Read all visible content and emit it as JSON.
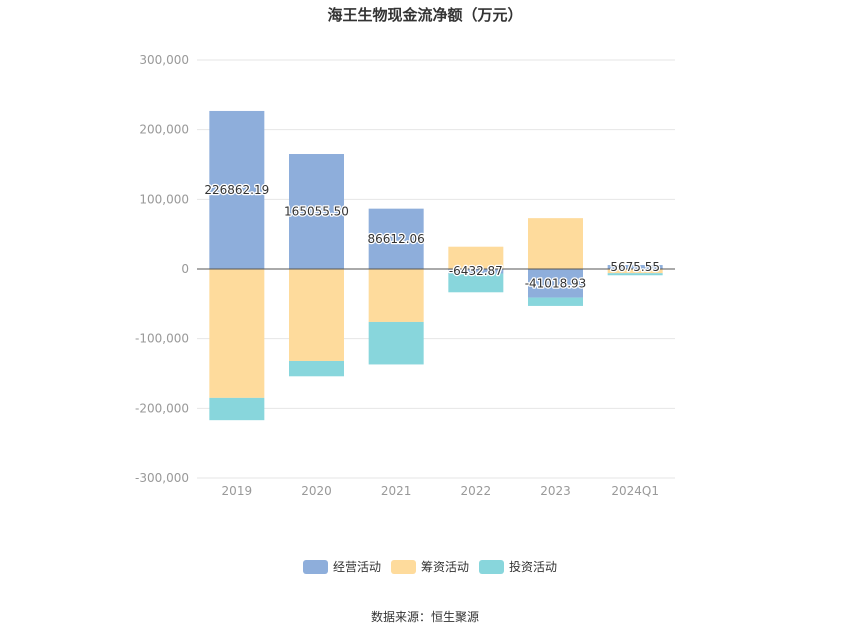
{
  "chart_data": {
    "type": "bar",
    "stacked": true,
    "title": "海王生物现金流净额（万元）",
    "categories": [
      "2019",
      "2020",
      "2021",
      "2022",
      "2023",
      "2024Q1"
    ],
    "ylim": [
      -300000,
      300000
    ],
    "yticks": [
      300000,
      200000,
      100000,
      0,
      -100000,
      -200000,
      -300000
    ],
    "ytick_labels": [
      "300,000",
      "200,000",
      "100,000",
      "0",
      "-100,000",
      "-200,000",
      "-300,000"
    ],
    "grid": true,
    "legend_position": "bottom",
    "series": [
      {
        "name": "经营活动",
        "color": "#8eaedb",
        "values": [
          226862.19,
          165055.5,
          86612.06,
          -6432.87,
          -41018.93,
          5675.55
        ],
        "data_labels": [
          "226862.19",
          "165055.50",
          "86612.06",
          "-6432.87",
          "-41018.93",
          "5675.55"
        ]
      },
      {
        "name": "筹资活动",
        "color": "#fedb9c",
        "values": [
          -185000,
          -132000,
          -76000,
          32000,
          73000,
          -6000
        ]
      },
      {
        "name": "投资活动",
        "color": "#88d6dc",
        "values": [
          -32000,
          -22000,
          -61000,
          -27000,
          -12000,
          -3000
        ]
      }
    ]
  },
  "source": "数据来源：恒生聚源"
}
